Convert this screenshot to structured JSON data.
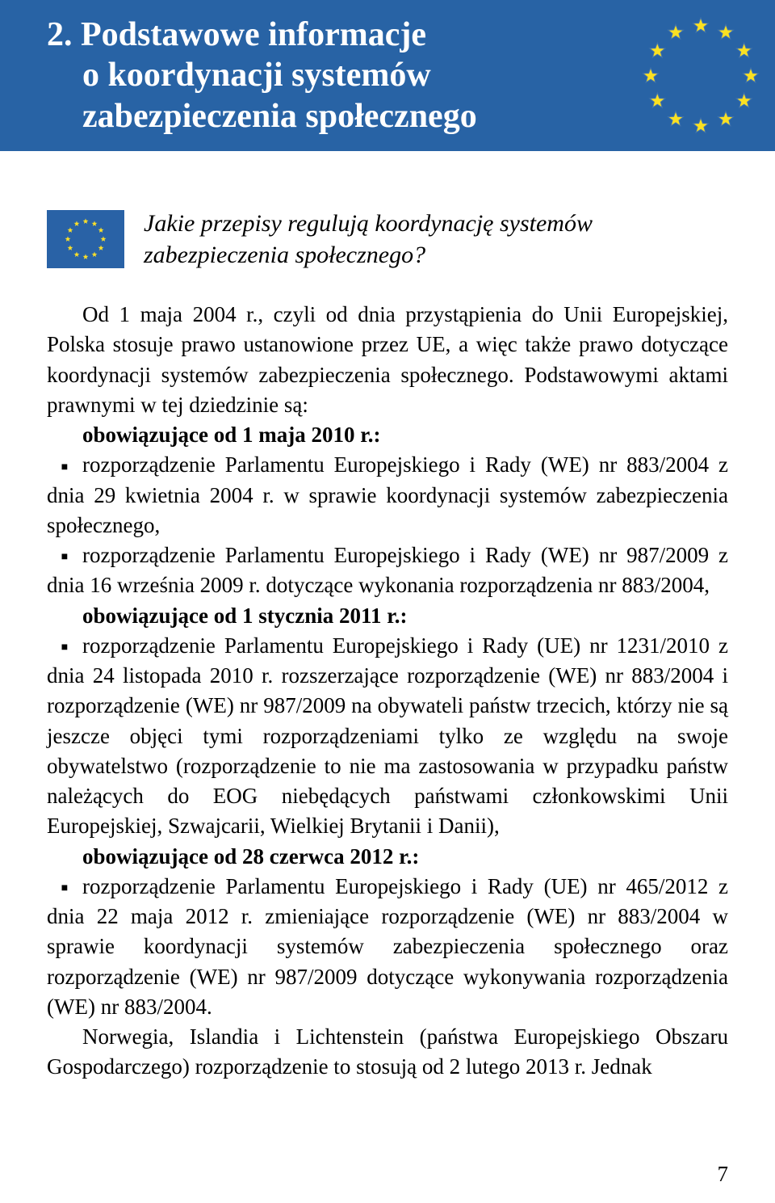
{
  "header": {
    "title_line1": "2. Podstawowe informacje",
    "title_line2": "o koordynacji systemów",
    "title_line3": "zabezpieczenia społecznego",
    "band_color": "#2863a5",
    "star_fill": "#fbe122",
    "star_stroke": "#4274ad"
  },
  "question": {
    "line1": "Jakie przepisy regulują koordynację systemów",
    "line2": "zabezpieczenia społecznego?",
    "flag_bg": "#2962a6",
    "flag_star": "#fce029"
  },
  "body": {
    "p1a": "Od 1 maja 2004 r., czyli od dnia przystąpienia do Unii Europejskiej, Polska stosuje prawo ustanowione przez UE, a więc także prawo dotyczące koordynacji systemów zabezpieczenia społecznego. Podstawowymi aktami prawnymi w tej dziedzinie są:",
    "sub1_label": "obowiązujące od 1 maja 2010 r.:",
    "b1": "rozporządzenie Parlamentu Europejskiego i Rady (WE) nr 883/2004 z dnia 29 kwietnia 2004 r. w sprawie koordynacji systemów zabezpieczenia społecznego,",
    "b2": "rozporządzenie Parlamentu Europejskiego i Rady (WE) nr 987/2009 z dnia 16 września 2009 r. dotyczące wykonania rozporządzenia nr 883/2004,",
    "sub2_label": "obowiązujące od 1 stycznia 2011 r.:",
    "b3": "rozporządzenie Parlamentu Europejskiego i Rady (UE) nr 1231/2010 z dnia 24 listopada 2010 r. rozszerzające rozporządzenie (WE) nr 883/2004 i rozporządzenie (WE) nr 987/2009 na obywateli państw trzecich, którzy nie są jeszcze objęci tymi rozporządzeniami tylko ze względu na swoje obywatelstwo (rozporządzenie to nie ma zastosowania w przypadku państw należących do EOG niebędących państwami członkowskimi Unii Europejskiej, Szwajcarii, Wielkiej Brytanii i Danii),",
    "sub3_label": "obowiązujące od 28 czerwca 2012 r.:",
    "b4": "rozporządzenie Parlamentu Europejskiego i Rady (UE) nr 465/2012 z dnia 22 maja 2012 r. zmieniające rozporządzenie (WE) nr 883/2004 w sprawie koordynacji systemów zabezpieczenia społecznego oraz rozporządzenie (WE) nr 987/2009 dotyczące wykonywania rozporządzenia (WE) nr 883/2004.",
    "p2": "Norwegia, Islandia i Lichtenstein (państwa Europejskiego Obszaru Gospodarczego) rozporządzenie to stosują od 2 lutego 2013 r. Jednak"
  },
  "page_number": "7"
}
